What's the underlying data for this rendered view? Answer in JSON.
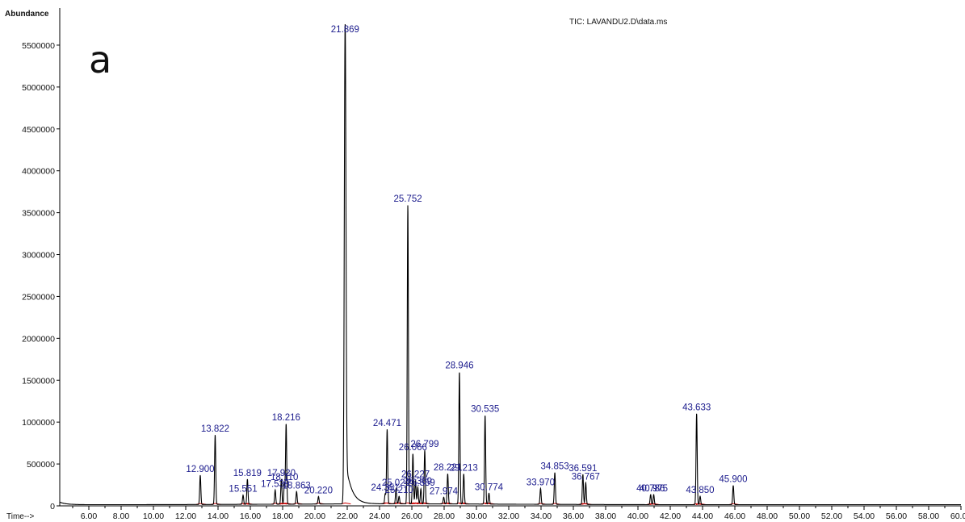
{
  "header": {
    "ylabel": "Abundance",
    "xlabel": "Time-->",
    "tic_label": "TIC: LAVANDU2.D\\data.ms",
    "panel_letter": "a"
  },
  "colors": {
    "trace": "#000000",
    "baseline": "#cc0000",
    "peak_label": "#1a1a8c",
    "axis": "#000000"
  },
  "chart_data": {
    "type": "line",
    "title": "",
    "xlabel": "Time-->",
    "ylabel": "Abundance",
    "xlim": [
      4.2,
      60.0
    ],
    "ylim": [
      0,
      5750000
    ],
    "x_ticks": [
      "6.00",
      "8.00",
      "10.00",
      "12.00",
      "14.00",
      "16.00",
      "18.00",
      "20.00",
      "22.00",
      "24.00",
      "26.00",
      "28.00",
      "30.00",
      "32.00",
      "34.00",
      "36.00",
      "38.00",
      "40.00",
      "42.00",
      "44.00",
      "46.00",
      "48.00",
      "50.00",
      "52.00",
      "54.00",
      "56.00",
      "58.00",
      "60.00"
    ],
    "y_ticks": [
      "0",
      "500000",
      "1000000",
      "1500000",
      "2000000",
      "2500000",
      "3000000",
      "3500000",
      "4000000",
      "4500000",
      "5000000",
      "5500000"
    ],
    "grid": false,
    "peaks": [
      {
        "label": "12.900",
        "rt": 12.9,
        "height": 350000
      },
      {
        "label": "13.822",
        "rt": 13.822,
        "height": 830000
      },
      {
        "label": "15.551",
        "rt": 15.551,
        "height": 110000
      },
      {
        "label": "15.819",
        "rt": 15.819,
        "height": 300000
      },
      {
        "label": "17.538",
        "rt": 17.538,
        "height": 170000
      },
      {
        "label": "17.920",
        "rt": 17.92,
        "height": 300000
      },
      {
        "label": "18.110",
        "rt": 18.11,
        "height": 250000
      },
      {
        "label": "18.216",
        "rt": 18.216,
        "height": 960000
      },
      {
        "label": "18.863",
        "rt": 18.863,
        "height": 150000
      },
      {
        "label": "20.220",
        "rt": 20.22,
        "height": 90000
      },
      {
        "label": "21.869",
        "rt": 21.869,
        "height": 5750000
      },
      {
        "label": "24.351",
        "rt": 24.351,
        "height": 120000
      },
      {
        "label": "24.471",
        "rt": 24.471,
        "height": 890000
      },
      {
        "label": "25.021",
        "rt": 25.021,
        "height": 180000
      },
      {
        "label": "25.210",
        "rt": 25.21,
        "height": 90000
      },
      {
        "label": "25.752",
        "rt": 25.752,
        "height": 3570000
      },
      {
        "label": "26.066",
        "rt": 26.066,
        "height": 600000
      },
      {
        "label": "26.227",
        "rt": 26.227,
        "height": 280000
      },
      {
        "label": "26.369",
        "rt": 26.369,
        "height": 200000
      },
      {
        "label": "26.559",
        "rt": 26.559,
        "height": 180000
      },
      {
        "label": "26.799",
        "rt": 26.799,
        "height": 640000
      },
      {
        "label": "27.974",
        "rt": 27.974,
        "height": 80000
      },
      {
        "label": "28.221",
        "rt": 28.221,
        "height": 360000
      },
      {
        "label": "28.946",
        "rt": 28.946,
        "height": 1580000
      },
      {
        "label": "29.213",
        "rt": 29.213,
        "height": 360000
      },
      {
        "label": "30.535",
        "rt": 30.535,
        "height": 1060000
      },
      {
        "label": "30.774",
        "rt": 30.774,
        "height": 130000
      },
      {
        "label": "33.970",
        "rt": 33.97,
        "height": 190000
      },
      {
        "label": "34.853",
        "rt": 34.853,
        "height": 380000
      },
      {
        "label": "36.591",
        "rt": 36.591,
        "height": 360000
      },
      {
        "label": "36.767",
        "rt": 36.767,
        "height": 260000
      },
      {
        "label": "40.786",
        "rt": 40.786,
        "height": 120000
      },
      {
        "label": "40.975",
        "rt": 40.975,
        "height": 120000
      },
      {
        "label": "43.633",
        "rt": 43.633,
        "height": 1090000
      },
      {
        "label": "43.850",
        "rt": 43.85,
        "height": 100000
      },
      {
        "label": "45.900",
        "rt": 45.9,
        "height": 230000
      }
    ]
  }
}
